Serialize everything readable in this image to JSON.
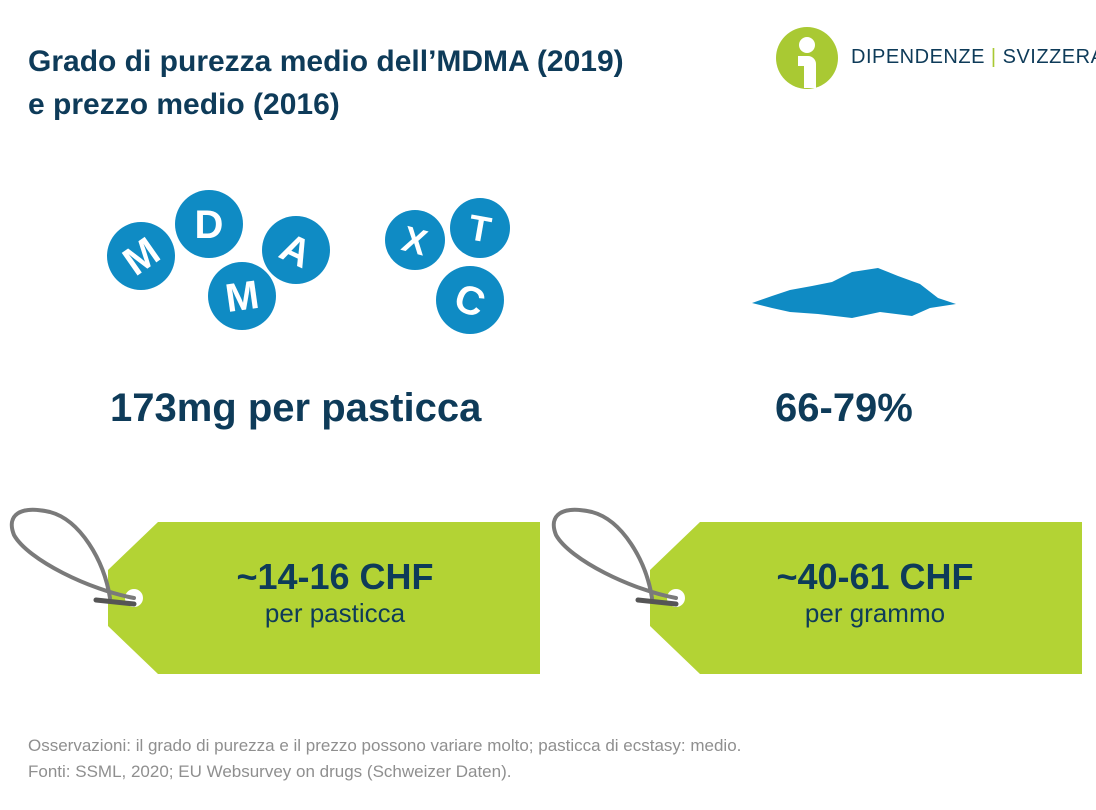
{
  "header": {
    "title_line1": "Grado di purezza medio dell’MDMA (2019)",
    "title_line2": "e prezzo medio (2016)"
  },
  "logo": {
    "part1": "DIPENDENZE",
    "separator": "|",
    "part2": "SVIZZERA",
    "icon": "info-person-icon"
  },
  "pills": {
    "group1": [
      "M",
      "D",
      "A",
      "M"
    ],
    "group2": [
      "X",
      "T",
      "C"
    ]
  },
  "stats": {
    "pill_dose": "173mg per pasticca",
    "powder_purity": "66-79%"
  },
  "tags": [
    {
      "price": "~14-16 CHF",
      "unit": "per pasticca"
    },
    {
      "price": "~40-61 CHF",
      "unit": "per grammo"
    }
  ],
  "footer": {
    "note": "Osservazioni: il grado di purezza e il prezzo possono variare molto; pasticca di ecstasy: medio.",
    "sources": "Fonti: SSML, 2020; EU Websurvey on drugs (Schweizer Daten)."
  },
  "colors": {
    "navy": "#0e3b59",
    "pill_blue": "#0f8bc4",
    "tag_green": "#b3d334",
    "logo_green": "#a9c933",
    "string_gray": "#7a7a7a",
    "footnote_gray": "#8f8f8f"
  }
}
